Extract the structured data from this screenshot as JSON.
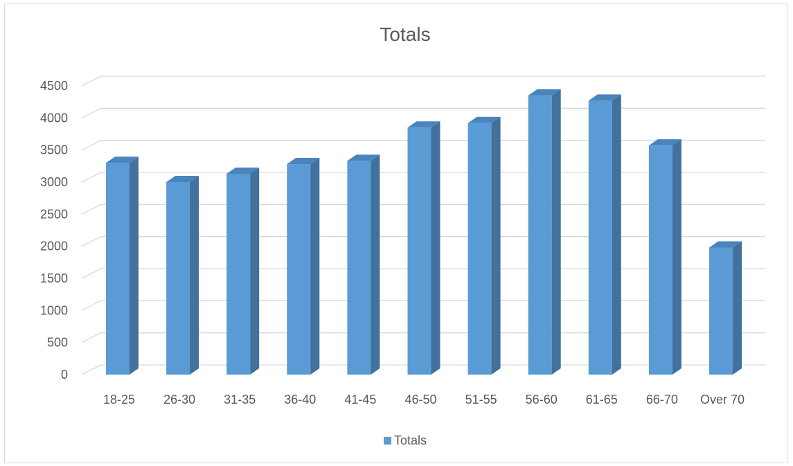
{
  "chart_data": {
    "type": "bar",
    "title": "Totals",
    "categories": [
      "18-25",
      "26-30",
      "31-35",
      "36-40",
      "41-45",
      "46-50",
      "51-55",
      "56-60",
      "61-65",
      "66-70",
      "Over 70"
    ],
    "series": [
      {
        "name": "Totals",
        "values": [
          3300,
          3000,
          3130,
          3280,
          3330,
          3850,
          3920,
          4350,
          4270,
          3570,
          1980
        ]
      }
    ],
    "ylim": [
      0,
      4500
    ],
    "yticks": [
      0,
      500,
      1000,
      1500,
      2000,
      2500,
      3000,
      3500,
      4000,
      4500
    ],
    "grid": true,
    "legend_position": "bottom",
    "style": "3d-column"
  },
  "colors": {
    "bar_front": "#5b9bd5",
    "bar_side": "#41719c",
    "bar_top": "#4a84bd",
    "gridline": "#d9d9d9",
    "text": "#595959"
  }
}
